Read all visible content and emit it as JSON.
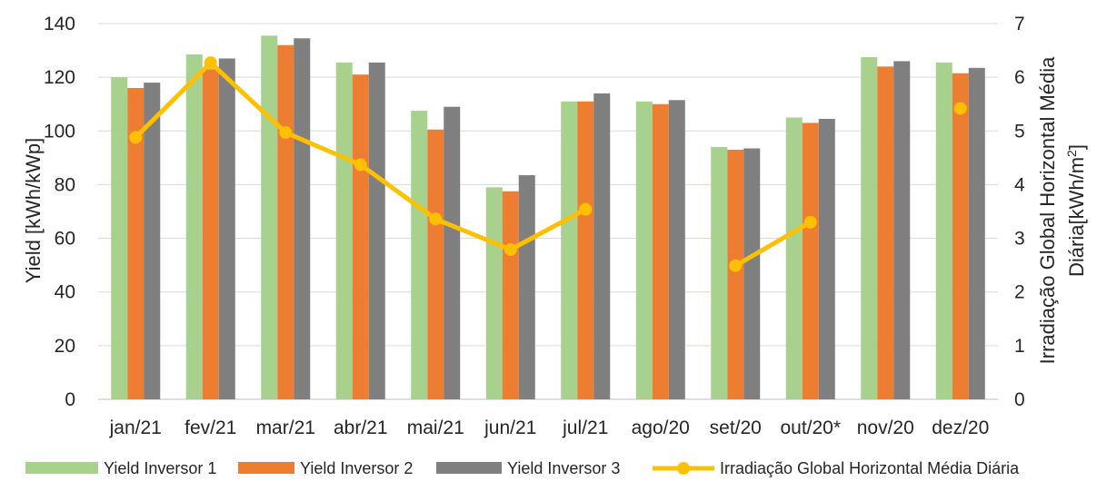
{
  "chart_data": {
    "type": "bar",
    "categories": [
      "jan/21",
      "fev/21",
      "mar/21",
      "abr/21",
      "mai/21",
      "jun/21",
      "jul/21",
      "ago/20",
      "set/20",
      "out/20*",
      "nov/20",
      "dez/20"
    ],
    "series": [
      {
        "name": "Yield Inversor 1",
        "type": "bar",
        "axis": "left",
        "color": "#A9D18E",
        "values": [
          120,
          128.5,
          135.5,
          125.5,
          107.5,
          79,
          111,
          111,
          94,
          105,
          127.5,
          125.5
        ]
      },
      {
        "name": "Yield Inversor 2",
        "type": "bar",
        "axis": "left",
        "color": "#ED7D31",
        "values": [
          116,
          123,
          132,
          121,
          100.5,
          77.5,
          111,
          110,
          93,
          103,
          124,
          121.5
        ]
      },
      {
        "name": "Yield Inversor 3",
        "type": "bar",
        "axis": "left",
        "color": "#7F7F7F",
        "values": [
          118,
          127,
          134.5,
          125.5,
          109,
          83.5,
          114,
          111.5,
          93.5,
          104.5,
          126,
          123.5
        ]
      },
      {
        "name": "Irradiação Global Horizontal Média Diária",
        "type": "line",
        "axis": "right",
        "color": "#FFC000",
        "values": [
          4.88,
          6.27,
          4.97,
          4.37,
          3.36,
          2.79,
          3.54,
          null,
          2.49,
          3.3,
          null,
          5.42
        ]
      }
    ],
    "ylabel": "Yield [kWh/kWp]",
    "y2label_line1": "Irradiação Global Horizontal Média",
    "y2label_line2": "Diária[kWh/m",
    "y2label_sup": "2",
    "y2label_end": "]",
    "ylim": [
      0,
      140
    ],
    "y2lim": [
      0,
      7
    ],
    "yticks": [
      "0",
      "20",
      "40",
      "60",
      "80",
      "100",
      "120",
      "140"
    ],
    "y2ticks": [
      "0",
      "1",
      "2",
      "3",
      "4",
      "5",
      "6",
      "7"
    ],
    "grid": true,
    "legend": "bottom"
  }
}
